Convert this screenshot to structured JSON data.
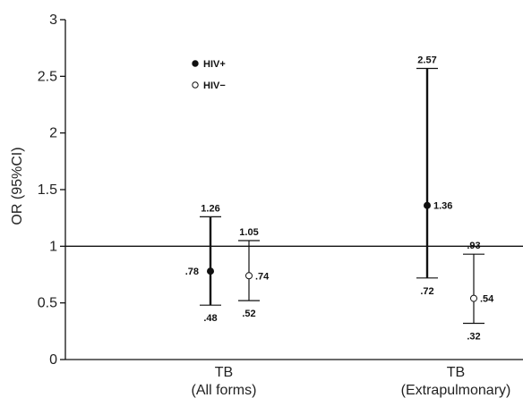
{
  "chart_data": {
    "type": "errorbar",
    "ylabel": "OR (95%CI)",
    "ylim": [
      0,
      3
    ],
    "yticks": [
      "0",
      "0.5",
      "1",
      "1.5",
      "2",
      "2.5",
      "3"
    ],
    "reference_line": 1,
    "categories": [
      {
        "label_line1": "TB",
        "label_line2": "(All forms)"
      },
      {
        "label_line1": "TB",
        "label_line2": "(Extrapulmonary)"
      }
    ],
    "series": [
      {
        "name": "HIV+",
        "marker": "filled-circle",
        "points": [
          {
            "category": 0,
            "or": 0.78,
            "lower": 0.48,
            "upper": 1.26,
            "or_label": ".78",
            "lower_label": ".48",
            "upper_label": "1.26"
          },
          {
            "category": 1,
            "or": 1.36,
            "lower": 0.72,
            "upper": 2.57,
            "or_label": "1.36",
            "lower_label": ".72",
            "upper_label": "2.57"
          }
        ]
      },
      {
        "name": "HIV-",
        "marker": "open-circle",
        "points": [
          {
            "category": 0,
            "or": 0.74,
            "lower": 0.52,
            "upper": 1.05,
            "or_label": ".74",
            "lower_label": ".52",
            "upper_label": "1.05"
          },
          {
            "category": 1,
            "or": 0.54,
            "lower": 0.32,
            "upper": 0.93,
            "or_label": ".54",
            "lower_label": ".32",
            "upper_label": ".93"
          }
        ]
      }
    ],
    "legend": {
      "placement": "top-left",
      "entries": [
        {
          "label": "HIV+"
        },
        {
          "label": "HIV−"
        }
      ]
    },
    "colors": {
      "ink": "#111111"
    }
  }
}
